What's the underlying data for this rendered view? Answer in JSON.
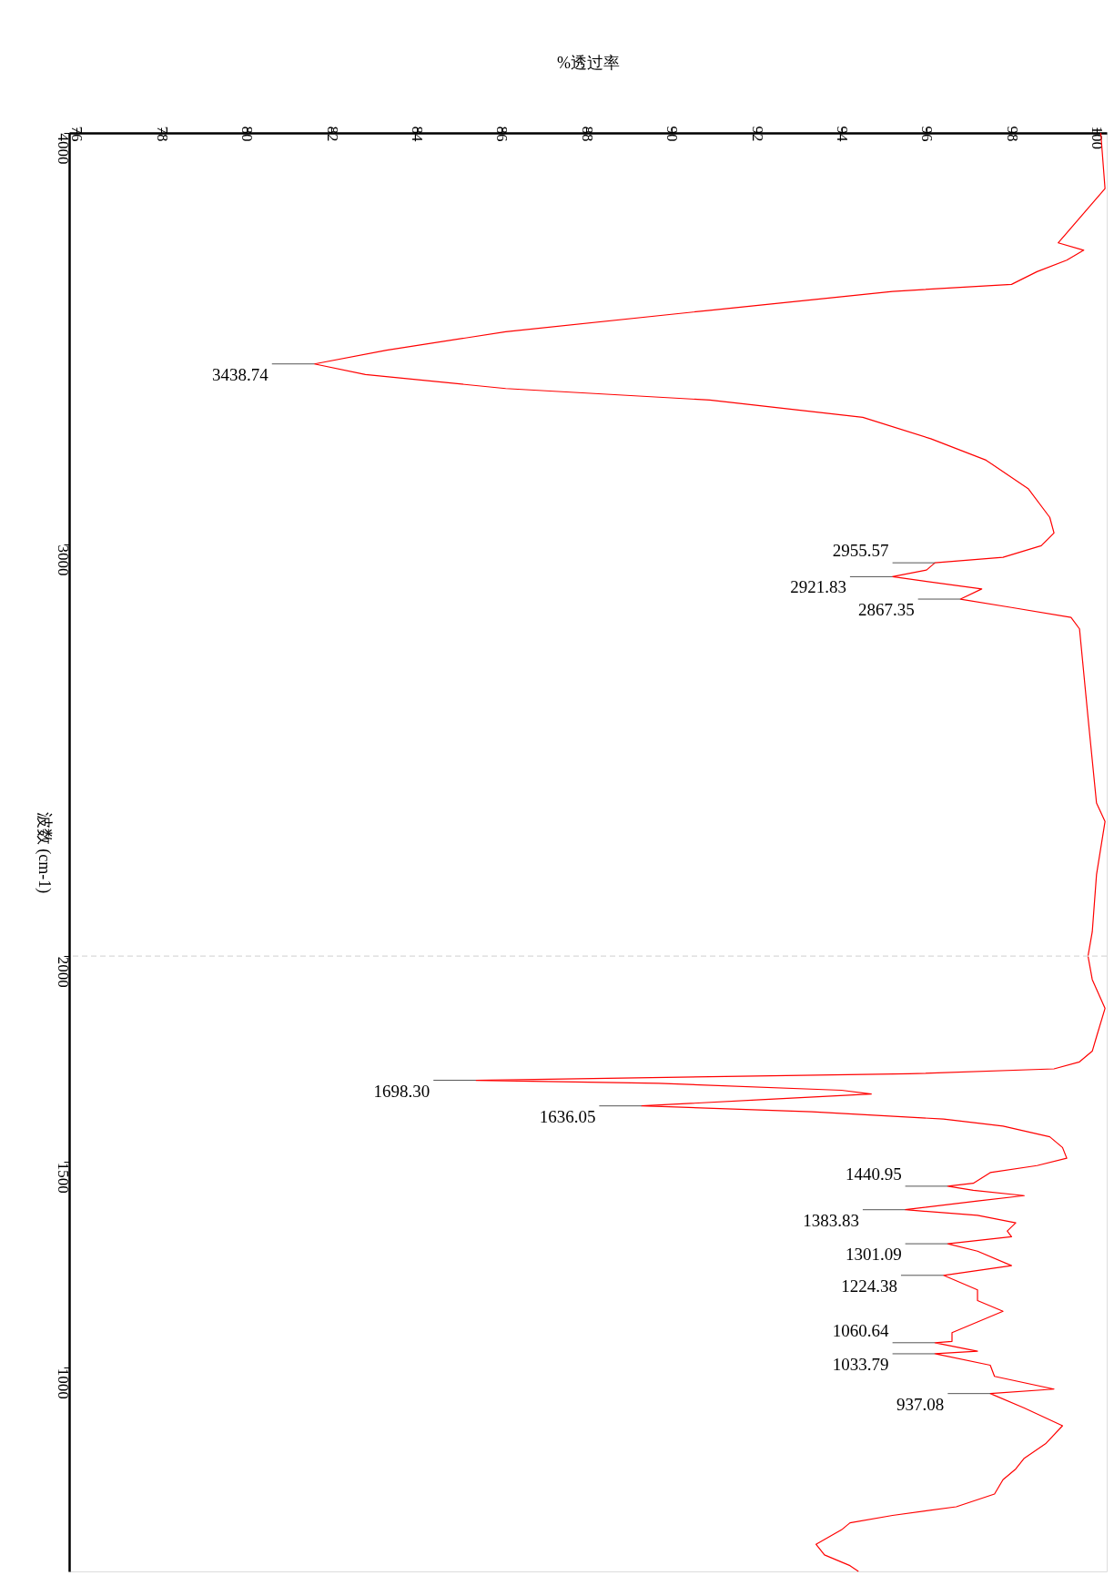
{
  "chart_data": {
    "type": "line",
    "orientation": "horizontal",
    "xlabel": "%透过率",
    "ylabel": "波数 (cm-1)",
    "x": [
      4000,
      3865,
      3733,
      3715,
      3691,
      3663,
      3632,
      3615,
      3569,
      3517,
      3472,
      3438.74,
      3413,
      3379,
      3351,
      3309,
      3257,
      3205,
      3135,
      3066,
      3028,
      2997,
      2969,
      2955.57,
      2938,
      2921.83,
      2892,
      2867.35,
      2847,
      2823,
      2795,
      2580,
      2372,
      2327,
      2198,
      2059,
      2000,
      1943,
      1873,
      1804,
      1769,
      1743,
      1726,
      1714,
      1707,
      1698.3,
      1691,
      1674,
      1665,
      1651,
      1636.05,
      1622,
      1604,
      1587,
      1561,
      1535,
      1509,
      1491,
      1474,
      1448,
      1440.95,
      1431,
      1418,
      1405,
      1383.83,
      1370,
      1352,
      1332,
      1318,
      1301.09,
      1283,
      1248,
      1224.38,
      1189,
      1163,
      1137,
      1111,
      1085,
      1064,
      1060.64,
      1040,
      1033.79,
      1006,
      979,
      948,
      937.08,
      902,
      859,
      815,
      780,
      754,
      728,
      693,
      662,
      641,
      623,
      606,
      571,
      545,
      519,
      505
    ],
    "series": [
      {
        "color": "#ff0000",
        "values": [
          100.1,
          100.2,
          99.1,
          99.7,
          99.3,
          98.6,
          98.0,
          95.2,
          90.9,
          86.1,
          83.3,
          81.6,
          82.8,
          86.1,
          90.9,
          94.5,
          96.1,
          97.4,
          98.4,
          98.9,
          99.0,
          98.7,
          97.8,
          96.2,
          96.0,
          95.2,
          97.3,
          96.8,
          98.0,
          99.4,
          99.6,
          99.8,
          100.0,
          100.2,
          100.0,
          99.9,
          99.8,
          99.9,
          100.2,
          100.0,
          99.9,
          99.6,
          99.0,
          95.6,
          90.9,
          85.4,
          89.7,
          94.0,
          94.7,
          92.1,
          89.3,
          93.3,
          96.4,
          97.8,
          98.9,
          99.2,
          99.3,
          98.6,
          97.5,
          97.1,
          96.5,
          97.1,
          98.3,
          97.2,
          95.5,
          97.2,
          98.1,
          97.9,
          98.0,
          96.5,
          97.2,
          98.0,
          96.4,
          97.2,
          97.2,
          97.8,
          97.2,
          96.6,
          96.6,
          96.2,
          97.2,
          96.2,
          97.5,
          97.6,
          99.0,
          97.5,
          98.3,
          99.2,
          98.8,
          98.3,
          98.1,
          97.8,
          97.6,
          96.7,
          95.2,
          94.2,
          94.0,
          93.4,
          93.6,
          94.2,
          94.4
        ]
      }
    ],
    "xlim": [
      75.83,
      100.24
    ],
    "xticks": [
      76,
      78,
      80,
      82,
      84,
      86,
      88,
      90,
      92,
      94,
      96,
      98,
      100
    ],
    "ylim": [
      505,
      4000
    ],
    "yticks": [
      4000,
      3000,
      2000,
      1500,
      1000
    ],
    "ref_lines": [
      {
        "axis": "y",
        "value": 2000,
        "color": "#d9d9d9",
        "line_style": "dashed"
      }
    ],
    "marker": "none",
    "line_style": "solid",
    "annotations": [
      {
        "text": "3438.74",
        "x": 81.6,
        "y": 3438.74
      },
      {
        "text": "2955.57",
        "x": 96.2,
        "y": 2955.57
      },
      {
        "text": "2921.83",
        "x": 95.2,
        "y": 2921.83
      },
      {
        "text": "2867.35",
        "x": 96.8,
        "y": 2867.35
      },
      {
        "text": "1698.30",
        "x": 85.4,
        "y": 1698.3
      },
      {
        "text": "1636.05",
        "x": 89.3,
        "y": 1636.05
      },
      {
        "text": "1440.95",
        "x": 96.5,
        "y": 1440.95
      },
      {
        "text": "1383.83",
        "x": 95.5,
        "y": 1383.83
      },
      {
        "text": "1301.09",
        "x": 96.5,
        "y": 1301.09
      },
      {
        "text": "1224.38",
        "x": 96.4,
        "y": 1224.38
      },
      {
        "text": "1060.64",
        "x": 96.2,
        "y": 1060.64
      },
      {
        "text": "1033.79",
        "x": 96.2,
        "y": 1033.79
      },
      {
        "text": "937.08",
        "x": 97.5,
        "y": 937.08
      }
    ]
  }
}
